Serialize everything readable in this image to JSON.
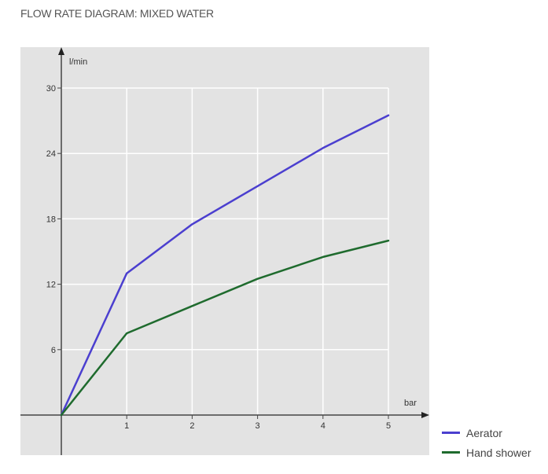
{
  "chart_data": {
    "type": "line",
    "title": "FLOW RATE DIAGRAM: MIXED WATER",
    "xlabel": "bar",
    "ylabel": "l/min",
    "xlim": [
      0,
      5
    ],
    "ylim": [
      0,
      30
    ],
    "x_ticks": [
      1,
      2,
      3,
      4,
      5
    ],
    "y_ticks": [
      6,
      12,
      18,
      24,
      30
    ],
    "grid": true,
    "legend_position": "bottom-right",
    "background_color": "#e3e3e3",
    "grid_color": "#ffffff",
    "series": [
      {
        "name": "Aerator",
        "color": "#4b3fcf",
        "x": [
          0,
          1,
          2,
          3,
          4,
          5
        ],
        "y": [
          0,
          13,
          17.5,
          21,
          24.5,
          27.5
        ]
      },
      {
        "name": "Hand shower",
        "color": "#1f6b2e",
        "x": [
          0,
          1,
          2,
          3,
          4,
          5
        ],
        "y": [
          0,
          7.5,
          10,
          12.5,
          14.5,
          16
        ]
      }
    ]
  }
}
